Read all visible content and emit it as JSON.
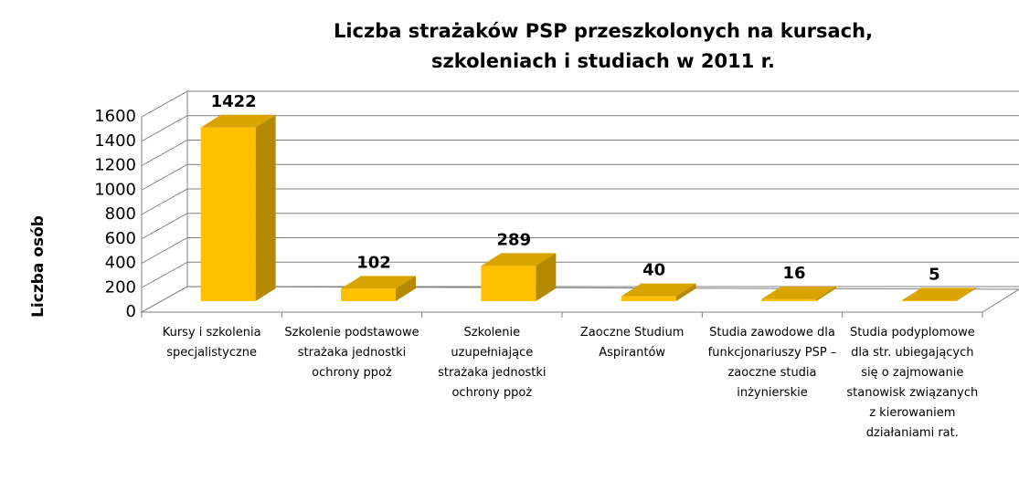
{
  "chart_data": {
    "type": "bar3d",
    "title": "Liczba strażaków PSP przeszkolonych na kursach, szkoleniach i studiach w 2011 r.",
    "ylabel": "Liczba osób",
    "categories": [
      "Kursy i szkolenia specjalistyczne",
      "Szkolenie podstawowe strażaka jednostki ochrony ppoż",
      "Szkolenie uzupełniające strażaka jednostki ochrony ppoż",
      "Zaoczne Studium Aspirantów",
      "Studia zawodowe dla funkcjonariuszy PSP – zaoczne studia inżynierskie",
      "Studia podyplomowe dla str. ubiegających się o zajmowanie stanowisk związanych z kierowaniem działaniami rat."
    ],
    "values": [
      1422,
      102,
      289,
      40,
      16,
      5
    ],
    "color": "#ffc000",
    "ylim": [
      0,
      1600
    ],
    "yticks": [
      0,
      200,
      400,
      600,
      800,
      1000,
      1200,
      1400,
      1600
    ],
    "grid": true
  }
}
